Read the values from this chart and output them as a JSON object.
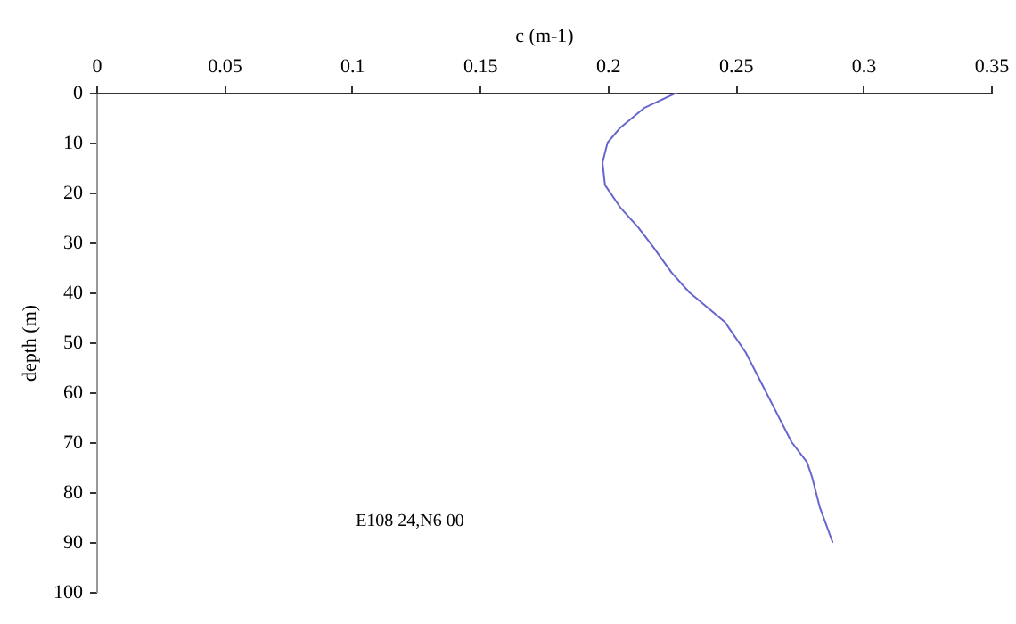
{
  "chart_data": {
    "type": "line",
    "xlabel": "c (m-1)",
    "ylabel": "depth (m)",
    "xlim": [
      0,
      0.35
    ],
    "xticks": [
      0,
      0.05,
      0.1,
      0.15,
      0.2,
      0.25,
      0.3,
      0.35
    ],
    "ylim": [
      100,
      0
    ],
    "yticks": [
      0,
      10,
      20,
      30,
      40,
      50,
      60,
      70,
      80,
      90,
      100
    ],
    "grid": false,
    "marker": "none",
    "line_style": "solid",
    "annotations": [
      "E108 24,N6 00"
    ],
    "series": [
      {
        "color": "#6666cc",
        "x": [
          0.227,
          0.2145,
          0.205,
          0.2,
          0.198,
          0.199,
          0.205,
          0.212,
          0.218,
          0.225,
          0.232,
          0.239,
          0.246,
          0.254,
          0.26,
          0.266,
          0.272,
          0.278,
          0.28,
          0.283,
          0.288
        ],
        "values": [
          0,
          3,
          7,
          10,
          14,
          18.5,
          23,
          27,
          31,
          36,
          40,
          43,
          46,
          52,
          58,
          64,
          70,
          74,
          77,
          83,
          90
        ]
      }
    ]
  }
}
